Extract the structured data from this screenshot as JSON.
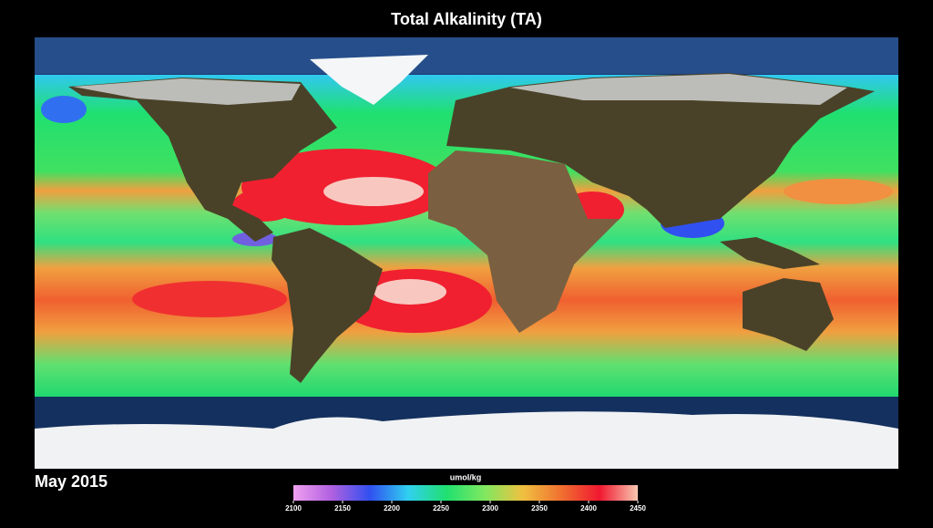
{
  "title": "Total Alkalinity (TA)",
  "date": "May 2015",
  "colorbar": {
    "label": "umol/kg",
    "range": [
      2100,
      2450
    ],
    "ticks": [
      2100,
      2150,
      2200,
      2250,
      2300,
      2350,
      2400,
      2450
    ],
    "colors": [
      "#f0a0f0",
      "#b060e0",
      "#3050f0",
      "#30d0f0",
      "#20e070",
      "#80e860",
      "#f0c040",
      "#f07030",
      "#f01830",
      "#f8c8b0"
    ]
  }
}
